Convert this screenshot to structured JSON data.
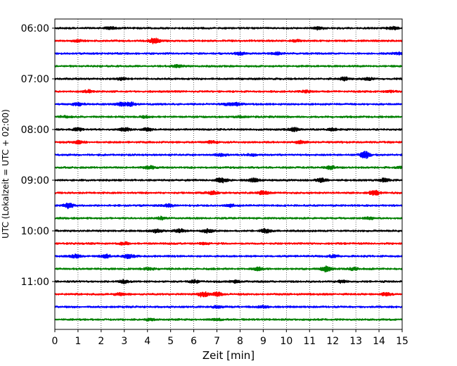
{
  "chart_data": {
    "type": "line",
    "title": "",
    "xlabel": "Zeit  [min]",
    "ylabel": "UTC (Lokalzeit = UTC + 02:00)",
    "xlim": [
      0,
      15
    ],
    "x_ticks": [
      "0",
      "1",
      "2",
      "3",
      "4",
      "5",
      "6",
      "7",
      "8",
      "9",
      "10",
      "11",
      "12",
      "13",
      "14",
      "15"
    ],
    "y_ticks": [
      "06:00",
      "07:00",
      "08:00",
      "09:00",
      "10:00",
      "11:00"
    ],
    "grid": "vertical-dotted",
    "legend": "none",
    "trace_interval_minutes": 15,
    "first_trace": "06:00",
    "colors_cycle": [
      "#000000",
      "#ff0000",
      "#0000ff",
      "#008000"
    ],
    "traces": [
      {
        "start": "06:00",
        "color": "#000000",
        "events": [
          {
            "t": 2.4,
            "amp": 0.45
          },
          {
            "t": 11.4,
            "amp": 0.5
          },
          {
            "t": 14.6,
            "amp": 0.45
          }
        ]
      },
      {
        "start": "06:15",
        "color": "#ff0000",
        "events": [
          {
            "t": 4.3,
            "amp": 1.0
          },
          {
            "t": 1.0,
            "amp": 0.25
          },
          {
            "t": 10.4,
            "amp": 0.3
          }
        ]
      },
      {
        "start": "06:30",
        "color": "#0000ff",
        "events": [
          {
            "t": 8.0,
            "amp": 0.35
          },
          {
            "t": 9.6,
            "amp": 0.35
          },
          {
            "t": 14.8,
            "amp": 0.3
          }
        ]
      },
      {
        "start": "06:45",
        "color": "#008000",
        "events": [
          {
            "t": 5.3,
            "amp": 0.4
          }
        ]
      },
      {
        "start": "07:00",
        "color": "#000000",
        "events": [
          {
            "t": 2.9,
            "amp": 0.35
          },
          {
            "t": 12.5,
            "amp": 0.55
          },
          {
            "t": 13.5,
            "amp": 0.4
          }
        ]
      },
      {
        "start": "07:15",
        "color": "#ff0000",
        "events": [
          {
            "t": 1.4,
            "amp": 0.5
          },
          {
            "t": 10.9,
            "amp": 0.35
          },
          {
            "t": 14.5,
            "amp": 0.3
          }
        ]
      },
      {
        "start": "07:30",
        "color": "#0000ff",
        "events": [
          {
            "t": 1.0,
            "amp": 0.45
          },
          {
            "t": 2.9,
            "amp": 0.55
          },
          {
            "t": 3.3,
            "amp": 0.5
          },
          {
            "t": 7.5,
            "amp": 0.4
          },
          {
            "t": 7.9,
            "amp": 0.4
          }
        ]
      },
      {
        "start": "07:45",
        "color": "#008000",
        "events": [
          {
            "t": 0.4,
            "amp": 0.35
          },
          {
            "t": 3.9,
            "amp": 0.3
          },
          {
            "t": 8.0,
            "amp": 0.3
          }
        ]
      },
      {
        "start": "08:00",
        "color": "#000000",
        "events": [
          {
            "t": 1.0,
            "amp": 0.5
          },
          {
            "t": 3.0,
            "amp": 0.55
          },
          {
            "t": 4.0,
            "amp": 0.5
          },
          {
            "t": 10.3,
            "amp": 0.6
          },
          {
            "t": 12.0,
            "amp": 0.35
          }
        ]
      },
      {
        "start": "08:15",
        "color": "#ff0000",
        "events": [
          {
            "t": 1.0,
            "amp": 0.5
          },
          {
            "t": 6.8,
            "amp": 0.4
          },
          {
            "t": 10.6,
            "amp": 0.45
          }
        ]
      },
      {
        "start": "08:30",
        "color": "#0000ff",
        "events": [
          {
            "t": 7.2,
            "amp": 0.35
          },
          {
            "t": 8.5,
            "amp": 0.35
          },
          {
            "t": 13.4,
            "amp": 1.0
          }
        ]
      },
      {
        "start": "08:45",
        "color": "#008000",
        "events": [
          {
            "t": 4.1,
            "amp": 0.5
          },
          {
            "t": 11.9,
            "amp": 0.5
          },
          {
            "t": 14.9,
            "amp": 0.3
          }
        ]
      },
      {
        "start": "09:00",
        "color": "#000000",
        "events": [
          {
            "t": 7.2,
            "amp": 0.8
          },
          {
            "t": 8.6,
            "amp": 0.6
          },
          {
            "t": 11.5,
            "amp": 0.6
          },
          {
            "t": 14.2,
            "amp": 0.55
          }
        ]
      },
      {
        "start": "09:15",
        "color": "#ff0000",
        "events": [
          {
            "t": 6.8,
            "amp": 0.5
          },
          {
            "t": 9.0,
            "amp": 0.6
          },
          {
            "t": 13.8,
            "amp": 0.8
          }
        ]
      },
      {
        "start": "09:30",
        "color": "#0000ff",
        "events": [
          {
            "t": 0.6,
            "amp": 0.8
          },
          {
            "t": 4.9,
            "amp": 0.5
          },
          {
            "t": 7.6,
            "amp": 0.4
          }
        ]
      },
      {
        "start": "09:45",
        "color": "#008000",
        "events": [
          {
            "t": 4.6,
            "amp": 0.4
          },
          {
            "t": 13.6,
            "amp": 0.3
          }
        ]
      },
      {
        "start": "10:00",
        "color": "#000000",
        "events": [
          {
            "t": 4.4,
            "amp": 0.5
          },
          {
            "t": 5.4,
            "amp": 0.5
          },
          {
            "t": 6.6,
            "amp": 0.55
          },
          {
            "t": 9.1,
            "amp": 0.6
          }
        ]
      },
      {
        "start": "10:15",
        "color": "#ff0000",
        "events": [
          {
            "t": 3.0,
            "amp": 0.4
          },
          {
            "t": 6.4,
            "amp": 0.3
          }
        ]
      },
      {
        "start": "10:30",
        "color": "#0000ff",
        "events": [
          {
            "t": 0.9,
            "amp": 0.6
          },
          {
            "t": 2.2,
            "amp": 0.55
          },
          {
            "t": 3.2,
            "amp": 0.7
          },
          {
            "t": 12.0,
            "amp": 0.4
          }
        ]
      },
      {
        "start": "10:45",
        "color": "#008000",
        "events": [
          {
            "t": 4.1,
            "amp": 0.35
          },
          {
            "t": 8.8,
            "amp": 0.5
          },
          {
            "t": 11.7,
            "amp": 0.85
          },
          {
            "t": 12.9,
            "amp": 0.4
          }
        ]
      },
      {
        "start": "11:00",
        "color": "#000000",
        "events": [
          {
            "t": 3.0,
            "amp": 0.5
          },
          {
            "t": 6.0,
            "amp": 0.5
          },
          {
            "t": 7.8,
            "amp": 0.45
          },
          {
            "t": 12.4,
            "amp": 0.4
          }
        ]
      },
      {
        "start": "11:15",
        "color": "#ff0000",
        "events": [
          {
            "t": 2.8,
            "amp": 0.35
          },
          {
            "t": 6.4,
            "amp": 0.75
          },
          {
            "t": 7.0,
            "amp": 0.55
          },
          {
            "t": 14.3,
            "amp": 0.45
          }
        ]
      },
      {
        "start": "11:30",
        "color": "#0000ff",
        "events": [
          {
            "t": 7.0,
            "amp": 0.35
          },
          {
            "t": 9.0,
            "amp": 0.3
          }
        ]
      },
      {
        "start": "11:45",
        "color": "#008000",
        "events": [
          {
            "t": 4.1,
            "amp": 0.35
          },
          {
            "t": 7.0,
            "amp": 0.3
          }
        ]
      }
    ]
  }
}
